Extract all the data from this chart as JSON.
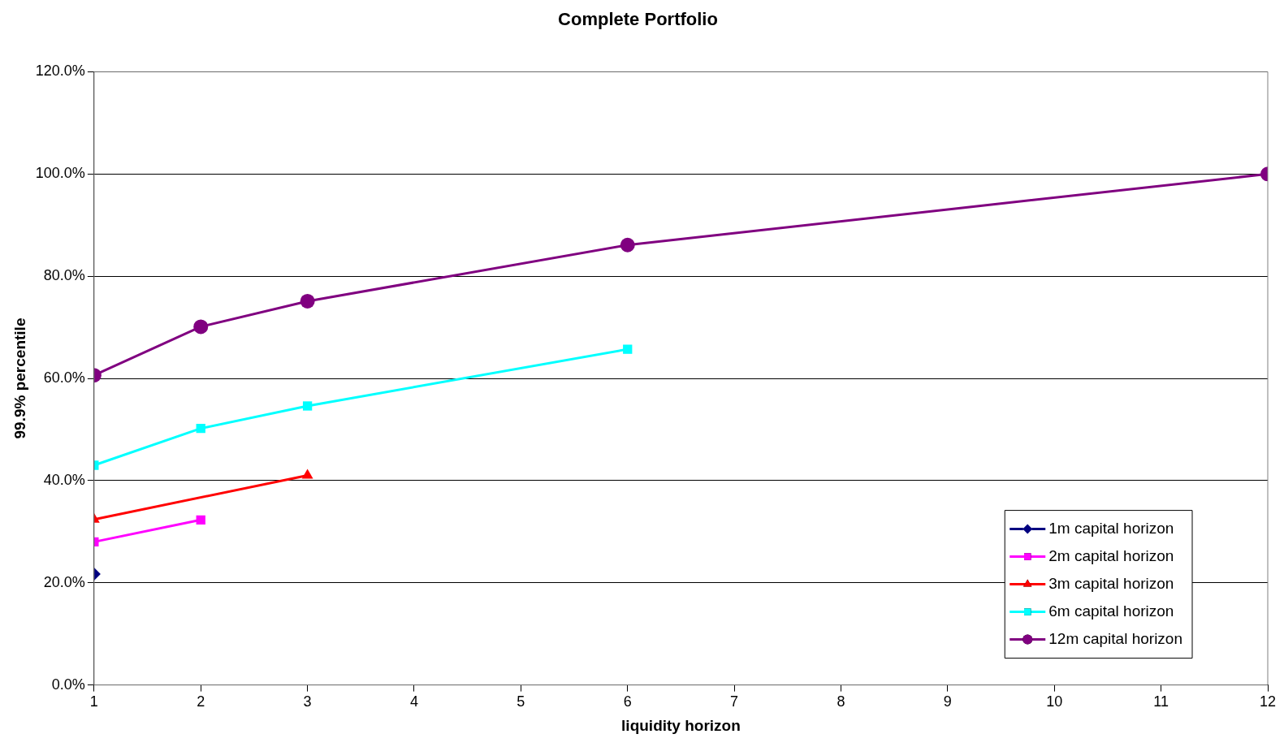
{
  "chart_data": {
    "type": "line",
    "title": "Complete Portfolio",
    "xlabel": "liquidity horizon",
    "ylabel": "99.9% percentile",
    "xlim": [
      1,
      12
    ],
    "xticks": [
      1,
      2,
      3,
      4,
      5,
      6,
      7,
      8,
      9,
      10,
      11,
      12
    ],
    "ylim": [
      0,
      120
    ],
    "yticks": [
      {
        "value": 0,
        "label": "0.0%"
      },
      {
        "value": 20,
        "label": "20.0%"
      },
      {
        "value": 40,
        "label": "40.0%"
      },
      {
        "value": 60,
        "label": "60.0%"
      },
      {
        "value": 80,
        "label": "80.0%"
      },
      {
        "value": 100,
        "label": "100.0%"
      },
      {
        "value": 120,
        "label": "120.0%"
      }
    ],
    "grid": "y",
    "legend": "bottom right",
    "line_style": "solid",
    "series": [
      {
        "name": "1m capital horizon",
        "color": "#000080",
        "marker": "diamond",
        "x": [
          1
        ],
        "values": [
          21.7
        ]
      },
      {
        "name": "2m capital horizon",
        "color": "#ff00ff",
        "marker": "square",
        "x": [
          1,
          2
        ],
        "values": [
          28.0,
          32.3
        ]
      },
      {
        "name": "3m capital horizon",
        "color": "#ff0000",
        "marker": "triangle",
        "x": [
          1,
          3
        ],
        "values": [
          32.4,
          41.0
        ]
      },
      {
        "name": "6m capital horizon",
        "color": "#00ffff",
        "marker": "square",
        "x": [
          1,
          2,
          3,
          6
        ],
        "values": [
          43.0,
          50.2,
          54.6,
          65.7
        ]
      },
      {
        "name": "12m capital horizon",
        "color": "#800080",
        "marker": "circle",
        "x": [
          1,
          2,
          3,
          6,
          12
        ],
        "values": [
          60.6,
          70.1,
          75.1,
          86.1,
          100.0
        ]
      }
    ]
  }
}
